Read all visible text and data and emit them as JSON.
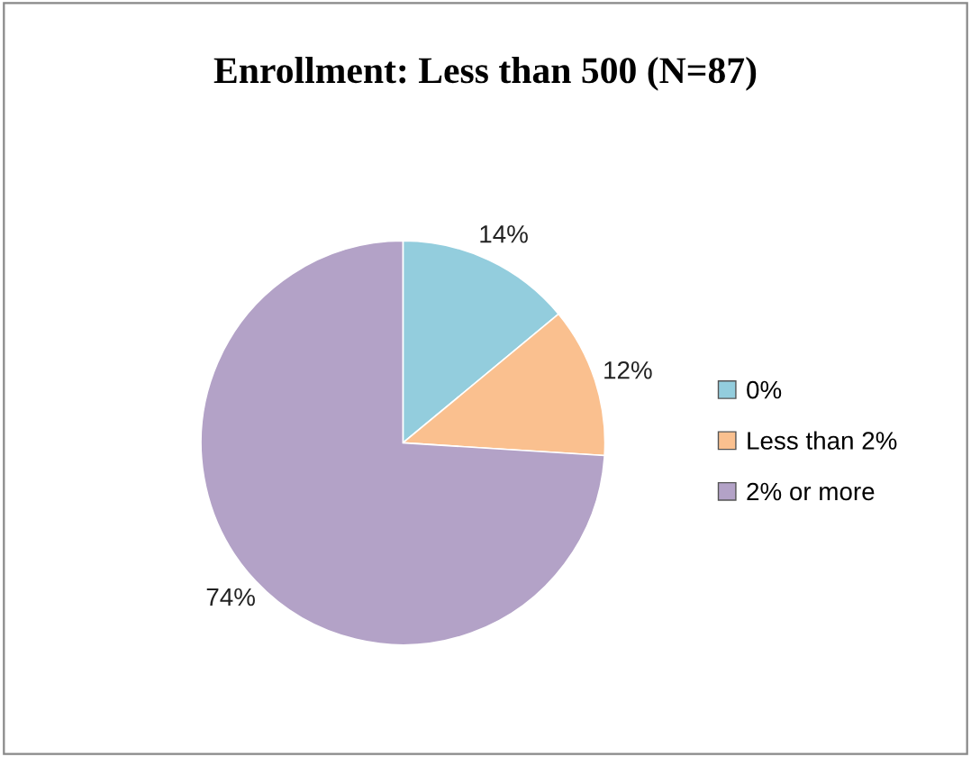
{
  "chart_data": {
    "type": "pie",
    "title": "Enrollment: Less than 500 (N=87)",
    "categories": [
      "0%",
      "Less than 2%",
      "2% or more"
    ],
    "values": [
      14,
      12,
      74
    ],
    "value_labels": [
      "14%",
      "12%",
      "74%"
    ],
    "colors": [
      "#93cddd",
      "#fac08f",
      "#b3a2c7"
    ],
    "legend": "right"
  }
}
